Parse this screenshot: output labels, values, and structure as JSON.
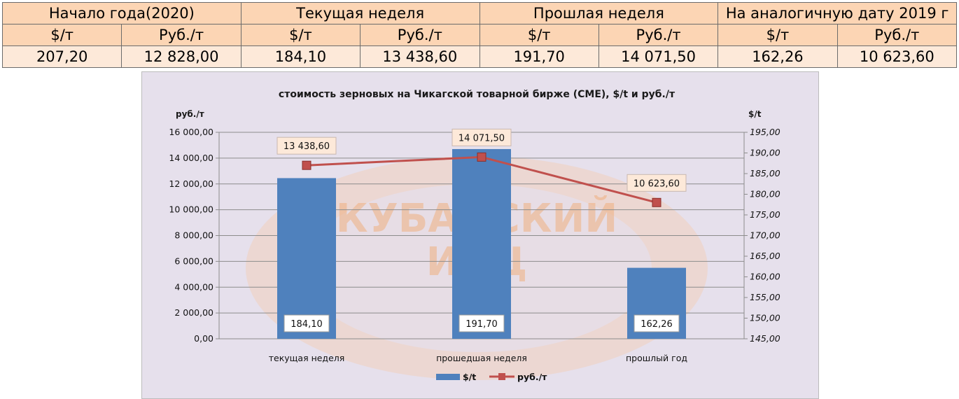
{
  "table": {
    "groups": [
      "Начало года(2020)",
      "Текущая неделя",
      "Прошлая неделя",
      "На аналогичную дату 2019 г"
    ],
    "units": [
      "$/т",
      "Руб./т",
      "$/т",
      "Руб./т",
      "$/т",
      "Руб./т",
      "$/т",
      "Руб./т"
    ],
    "values": [
      "207,20",
      "12 828,00",
      "184,10",
      "13 438,60",
      "191,70",
      "14 071,50",
      "162,26",
      "10 623,60"
    ]
  },
  "watermark": {
    "line1": "КУБАНСКИЙ",
    "line2": "ИКЦ"
  },
  "colors": {
    "bar": "#4f81bd",
    "line": "#c0504d",
    "panel": "#e6e0ec",
    "header": "#fcd5b4",
    "row": "#fde9d9"
  },
  "chart_data": {
    "type": "bar",
    "title": "стоимость зерновых на Чикагской товарной бирже (CME), $/t и руб./т",
    "categories": [
      "текущая неделя",
      "прошедшая неделя",
      "прошлый год"
    ],
    "left_axis": {
      "label": "руб./т",
      "ylim": [
        0,
        16000
      ],
      "ticks": [
        "0,00",
        "2 000,00",
        "4 000,00",
        "6 000,00",
        "8 000,00",
        "10 000,00",
        "12 000,00",
        "14 000,00",
        "16 000,00"
      ]
    },
    "right_axis": {
      "label": "$/t",
      "ylim": [
        145,
        195
      ],
      "ticks": [
        "145,00",
        "150,00",
        "155,00",
        "160,00",
        "165,00",
        "170,00",
        "175,00",
        "180,00",
        "185,00",
        "190,00",
        "195,00"
      ]
    },
    "series": [
      {
        "name": "$/t",
        "type": "bar",
        "axis": "left",
        "values": [
          12450,
          14700,
          5500
        ],
        "labels": [
          "184,10",
          "191,70",
          "162,26"
        ]
      },
      {
        "name": "руб./т",
        "type": "line",
        "axis": "right",
        "values": [
          187,
          189,
          178
        ],
        "labels": [
          "13 438,60",
          "14 071,50",
          "10 623,60"
        ]
      }
    ],
    "grid": true,
    "legend": "bottom"
  }
}
